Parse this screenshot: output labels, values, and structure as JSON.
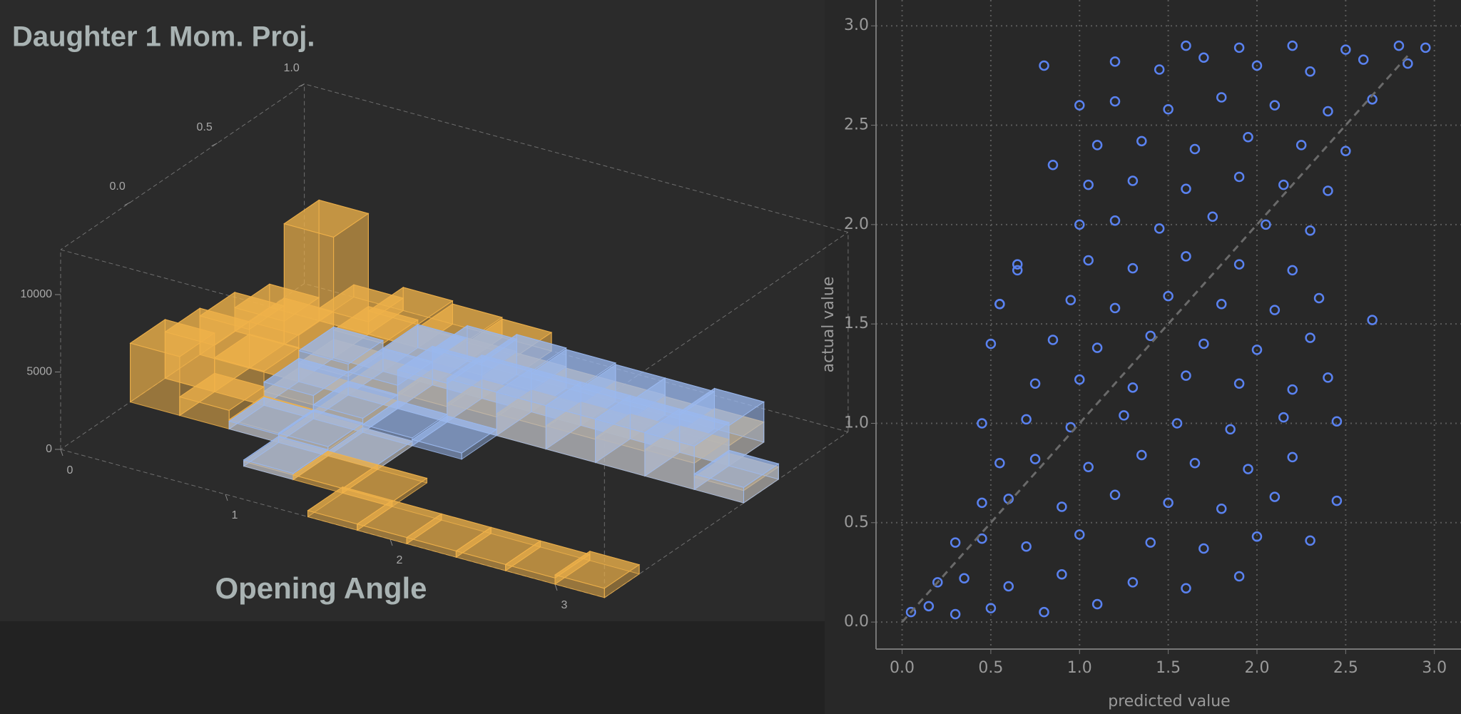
{
  "chart_data": [
    {
      "type": "bar3d",
      "title": "Daughter 1 Mom. Proj.",
      "xlabel": "Opening Angle",
      "xbins": [
        0,
        0.3,
        0.6,
        0.9,
        1.2,
        1.5,
        1.8,
        2.1,
        2.4,
        2.7,
        3.0,
        3.3
      ],
      "ybins": [
        -0.4,
        -0.2,
        0,
        0.2,
        0.4,
        0.6,
        0.8,
        1.0
      ],
      "xlim": [
        0,
        3.3
      ],
      "ylim": [
        -0.4,
        1.0
      ],
      "zlim": [
        0,
        12900
      ],
      "xticks": [
        0,
        1,
        2,
        3
      ],
      "yticks": [
        {
          "value": 0,
          "label": "0.0"
        },
        0.5,
        {
          "value": 1,
          "label": "1.0"
        }
      ],
      "zticks": [
        0,
        5000,
        10000
      ],
      "series": [
        {
          "color": "#f0b24a",
          "values": [
            [
              0,
              0,
              0,
              0,
              0,
              400,
              400,
              400,
              400,
              400,
              600
            ],
            [
              0,
              0,
              0,
              300,
              300,
              300,
              0,
              0,
              0,
              0,
              0
            ],
            [
              3800,
              1200,
              600,
              400,
              300,
              0,
              0,
              0,
              0,
              0,
              0
            ],
            [
              3000,
              2200,
              900,
              500,
              0,
              0,
              0,
              0,
              0,
              0,
              0
            ],
            [
              2500,
              3000,
              1200,
              800,
              1000,
              1200,
              1400,
              1500,
              1600,
              1700,
              800
            ],
            [
              1500,
              7800,
              1800,
              1400,
              1500,
              1400,
              1300,
              1300,
              1200,
              1300,
              0
            ],
            [
              0,
              800,
              1500,
              1300,
              1200,
              0,
              0,
              0,
              0,
              0,
              0
            ]
          ]
        },
        {
          "color": "#9ab8ee",
          "values": [
            [
              0,
              0,
              0,
              0,
              0,
              0,
              0,
              0,
              0,
              0,
              0
            ],
            [
              0,
              0,
              0,
              400,
              0,
              0,
              0,
              0,
              0,
              0,
              0
            ],
            [
              0,
              0,
              500,
              600,
              300,
              0,
              0,
              0,
              0,
              0,
              0
            ],
            [
              0,
              0,
              1500,
              900,
              500,
              400,
              0,
              0,
              0,
              0,
              0
            ],
            [
              0,
              0,
              2000,
              1500,
              2500,
              2800,
              2800,
              2800,
              2800,
              2800,
              1000
            ],
            [
              0,
              0,
              0,
              1500,
              2300,
              2600,
              2500,
              2400,
              2400,
              2600,
              0
            ],
            [
              0,
              0,
              0,
              0,
              0,
              0,
              0,
              0,
              0,
              0,
              0
            ]
          ]
        }
      ]
    },
    {
      "type": "scatter",
      "xlabel": "predicted value",
      "ylabel": "actual value",
      "xlim": [
        -0.147,
        3.15
      ],
      "ylim": [
        -0.136,
        3.13
      ],
      "xticks": [
        {
          "value": 0,
          "label": "0.0"
        },
        0.5,
        {
          "value": 1,
          "label": "1.0"
        },
        1.5,
        {
          "value": 2,
          "label": "2.0"
        },
        2.5,
        {
          "value": 3,
          "label": "3.0"
        }
      ],
      "yticks": [
        {
          "value": 0,
          "label": "0.0"
        },
        0.5,
        {
          "value": 1,
          "label": "1.0"
        },
        1.5,
        {
          "value": 2,
          "label": "2.0"
        },
        2.5,
        {
          "value": 3,
          "label": "3.0"
        }
      ],
      "grid": true,
      "color": "#5a82f0",
      "diagonal": {
        "x": [
          0,
          2.85
        ],
        "values": [
          0,
          2.85
        ],
        "color": "#6a6a6a"
      },
      "x": [
        0.05,
        0.15,
        0.3,
        0.5,
        0.8,
        1.1,
        0.2,
        0.35,
        0.6,
        0.9,
        1.3,
        1.6,
        1.9,
        0.3,
        0.45,
        0.7,
        1.0,
        1.4,
        1.7,
        2.0,
        2.3,
        0.45,
        0.6,
        0.9,
        1.2,
        1.5,
        1.8,
        2.1,
        2.45,
        0.55,
        0.75,
        1.05,
        1.35,
        1.65,
        1.95,
        2.2,
        0.45,
        0.7,
        0.95,
        1.25,
        1.55,
        1.85,
        2.15,
        2.45,
        0.75,
        1.0,
        1.3,
        1.6,
        1.9,
        2.2,
        2.4,
        0.5,
        0.85,
        1.1,
        1.4,
        1.7,
        2.0,
        2.3,
        0.55,
        0.95,
        1.2,
        1.5,
        1.8,
        2.1,
        2.35,
        0.65,
        1.05,
        1.3,
        1.6,
        1.9,
        2.2,
        1.0,
        1.2,
        1.45,
        1.75,
        2.05,
        2.3,
        1.05,
        1.3,
        1.6,
        1.9,
        2.15,
        2.4,
        1.1,
        1.35,
        1.65,
        1.95,
        2.25,
        2.5,
        1.0,
        1.2,
        1.5,
        1.8,
        2.1,
        2.4,
        2.65,
        0.8,
        1.2,
        1.45,
        1.7,
        2.0,
        2.3,
        2.6,
        2.85,
        1.6,
        1.9,
        2.2,
        2.5,
        2.8,
        2.95,
        2.65,
        0.85,
        0.65,
        0.55
      ],
      "values": [
        0.05,
        0.08,
        0.04,
        0.07,
        0.05,
        0.09,
        0.2,
        0.22,
        0.18,
        0.24,
        0.2,
        0.17,
        0.23,
        0.4,
        0.42,
        0.38,
        0.44,
        0.4,
        0.37,
        0.43,
        0.41,
        0.6,
        0.62,
        0.58,
        0.64,
        0.6,
        0.57,
        0.63,
        0.61,
        0.8,
        0.82,
        0.78,
        0.84,
        0.8,
        0.77,
        0.83,
        1.0,
        1.02,
        0.98,
        1.04,
        1.0,
        0.97,
        1.03,
        1.01,
        1.2,
        1.22,
        1.18,
        1.24,
        1.2,
        1.17,
        1.23,
        1.4,
        1.42,
        1.38,
        1.44,
        1.4,
        1.37,
        1.43,
        1.6,
        1.62,
        1.58,
        1.64,
        1.6,
        1.57,
        1.63,
        1.8,
        1.82,
        1.78,
        1.84,
        1.8,
        1.77,
        2.0,
        2.02,
        1.98,
        2.04,
        2.0,
        1.97,
        2.2,
        2.22,
        2.18,
        2.24,
        2.2,
        2.17,
        2.4,
        2.42,
        2.38,
        2.44,
        2.4,
        2.37,
        2.6,
        2.62,
        2.58,
        2.64,
        2.6,
        2.57,
        2.63,
        2.8,
        2.82,
        2.78,
        2.84,
        2.8,
        2.77,
        2.83,
        2.81,
        2.9,
        2.89,
        2.9,
        2.88,
        2.9,
        2.89,
        1.52,
        2.3,
        1.77,
        1.6
      ]
    }
  ]
}
